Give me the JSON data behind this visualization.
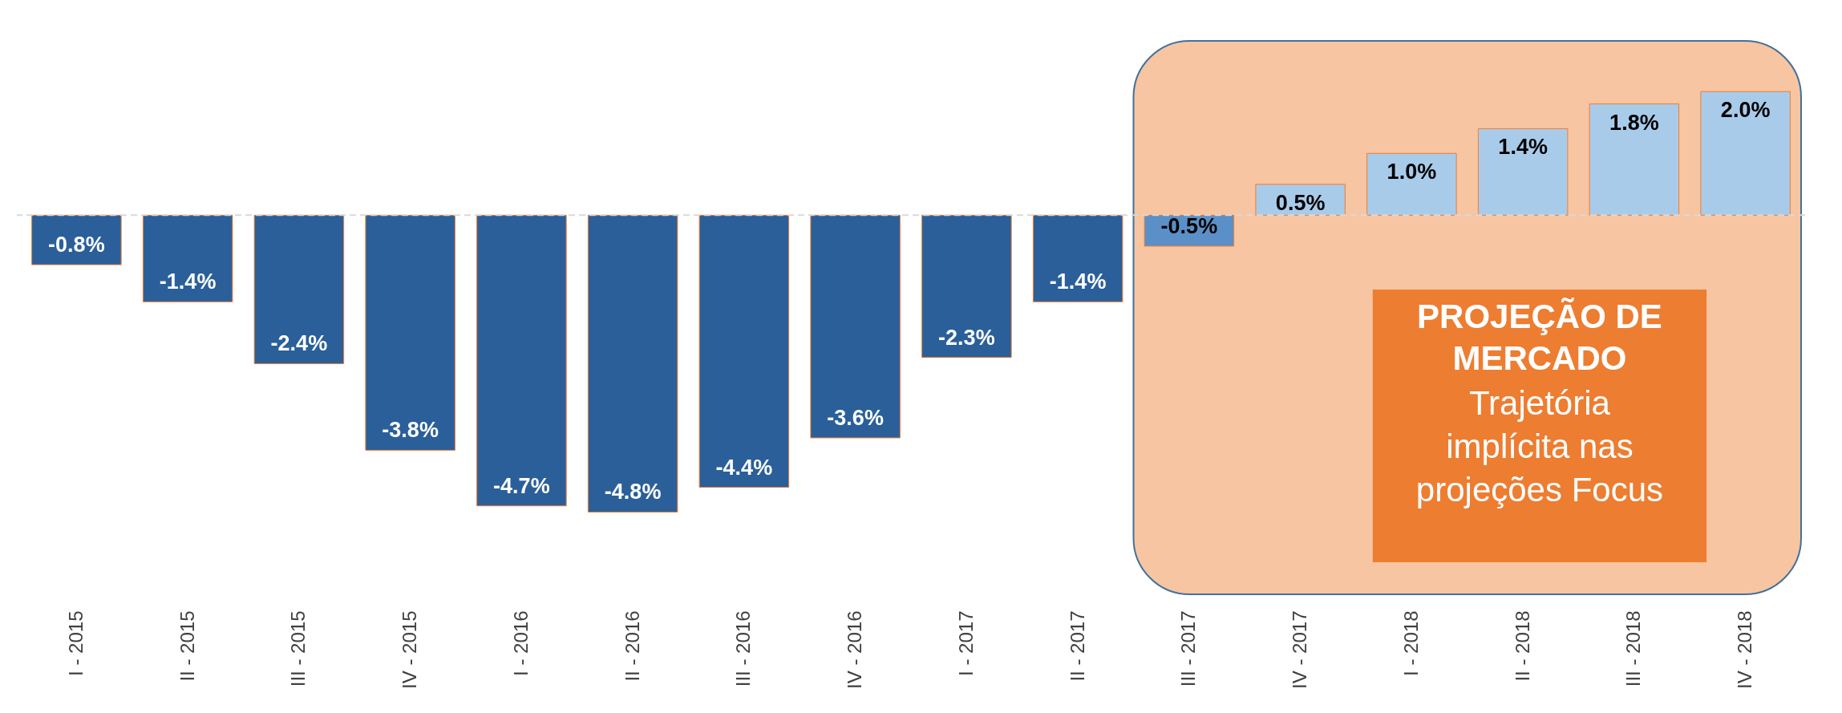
{
  "chart_data": {
    "type": "bar",
    "categories": [
      "I - 2015",
      "II - 2015",
      "III - 2015",
      "IV - 2015",
      "I - 2016",
      "II - 2016",
      "III - 2016",
      "IV - 2016",
      "I - 2017",
      "II - 2017",
      "III - 2017",
      "IV - 2017",
      "I - 2018",
      "II - 2018",
      "III - 2018",
      "IV - 2018"
    ],
    "values": [
      -0.8,
      -1.4,
      -2.4,
      -3.8,
      -4.7,
      -4.8,
      -4.4,
      -3.6,
      -2.3,
      -1.4,
      -0.5,
      0.5,
      1.0,
      1.4,
      1.8,
      2.0
    ],
    "value_labels": [
      "-0.8%",
      "-1.4%",
      "-2.4%",
      "-3.8%",
      "-4.7%",
      "-4.8%",
      "-4.4%",
      "-3.6%",
      "-2.3%",
      "-1.4%",
      "-0.5%",
      "0.5%",
      "1.0%",
      "1.4%",
      "1.8%",
      "2.0%"
    ],
    "colors": [
      "#2a5f9a",
      "#2a5f9a",
      "#2a5f9a",
      "#2a5f9a",
      "#2a5f9a",
      "#2a5f9a",
      "#2a5f9a",
      "#2a5f9a",
      "#2a5f9a",
      "#2a5f9a",
      "#5b8fc7",
      "#a9cbea",
      "#a9cbea",
      "#a9cbea",
      "#a9cbea",
      "#a9cbea"
    ],
    "ref_lines": [
      {
        "axis": "y",
        "value": 0,
        "color": "#d9d9d9",
        "line_style": "dashed"
      }
    ],
    "bands": [
      {
        "axis": "x",
        "from": "III - 2017",
        "to": "IV - 2018",
        "label": "PROJEÇÃO DE MERCADO",
        "color": "#f4b183"
      }
    ],
    "annotations": [
      "Trajetória implícita nas projeções Focus"
    ]
  }
}
